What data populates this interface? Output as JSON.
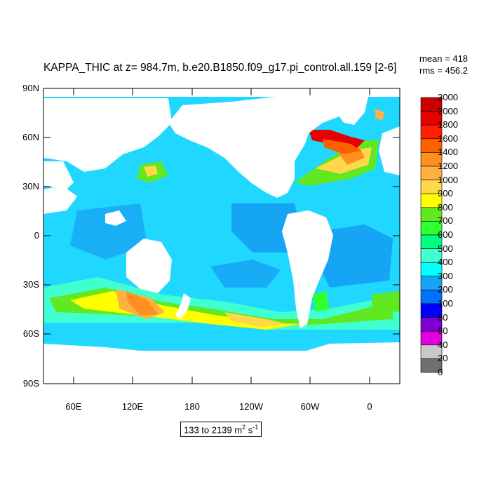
{
  "title": "KAPPA_THIC at z= 984.7m, b.e20.B1850.f09_g17.pi_control.all.159 [2-6]",
  "stats": {
    "mean": "mean = 418",
    "rms": "rms = 456.2"
  },
  "lat_labels": [
    "90N",
    "60N",
    "30N",
    "0",
    "30S",
    "60S",
    "90S"
  ],
  "lon_labels": [
    "60E",
    "120E",
    "180",
    "120W",
    "60W",
    "0"
  ],
  "range": {
    "text": "133 to 2139 m",
    "unit_sup1": "2",
    "unit_mid": " s",
    "unit_sup2": "-1"
  },
  "colorbar": {
    "labels": [
      "3000",
      "2000",
      "1800",
      "1600",
      "1400",
      "1200",
      "1000",
      "900",
      "800",
      "700",
      "600",
      "500",
      "400",
      "300",
      "200",
      "100",
      "80",
      "60",
      "40",
      "20",
      "0"
    ],
    "colors": [
      "#c80000",
      "#e60000",
      "#ff2000",
      "#ff6000",
      "#ff9020",
      "#ffb040",
      "#ffd84a",
      "#ffff00",
      "#60e820",
      "#30ff30",
      "#00ff80",
      "#40ffd0",
      "#00ffff",
      "#16a5f5",
      "#0070ff",
      "#0000ff",
      "#8000d0",
      "#e000e0",
      "#c8c8c8",
      "#707070"
    ]
  },
  "colors": {
    "ocean_base": "#20d8ff",
    "land": "#ffffff"
  }
}
